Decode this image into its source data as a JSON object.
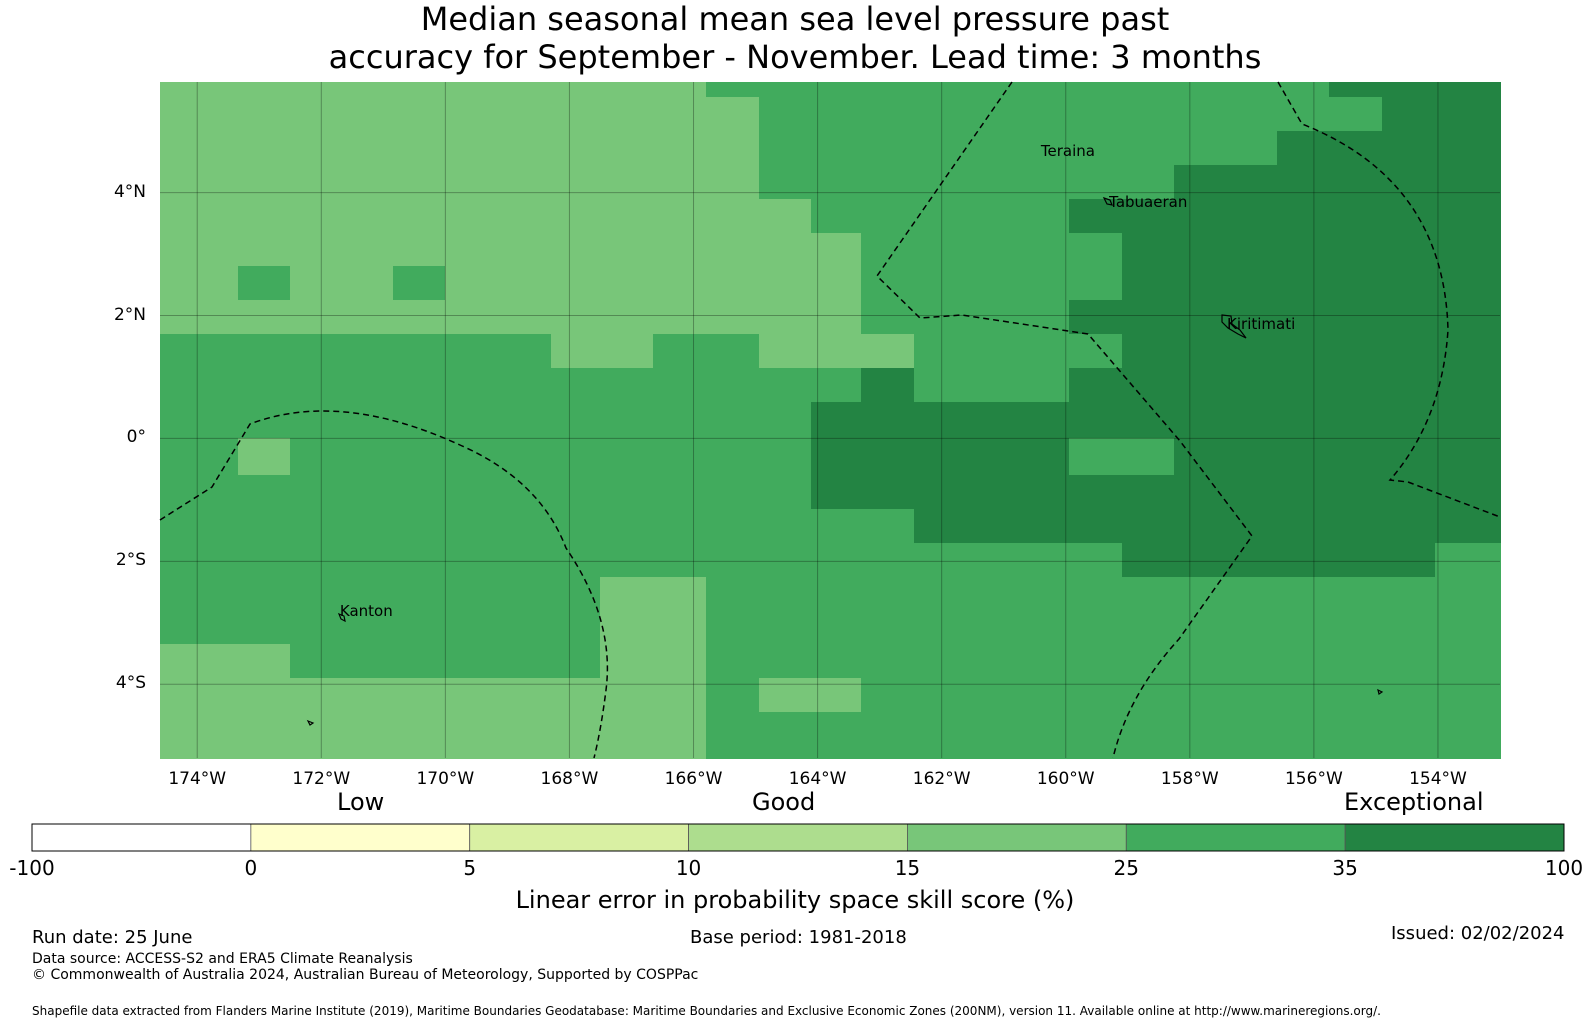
{
  "title_line1": "Median seasonal mean sea level pressure past",
  "title_line2": "accuracy for September - November. Lead time: 3 months",
  "map": {
    "lon_range": [
      -174.6,
      -153.0
    ],
    "lat_range": [
      -5.2,
      5.8
    ],
    "lon_ticks": [
      "174°W",
      "172°W",
      "170°W",
      "168°W",
      "166°W",
      "164°W",
      "162°W",
      "160°W",
      "158°W",
      "156°W",
      "154°W"
    ],
    "lat_ticks": [
      "4°N",
      "2°N",
      "0°",
      "2°S",
      "4°S"
    ],
    "places": [
      {
        "name": "Teraina",
        "lon": -160.4,
        "lat": 4.68
      },
      {
        "name": "Tabuaeran",
        "lon": -159.3,
        "lat": 3.85
      },
      {
        "name": "Kiritimati",
        "lon": -157.4,
        "lat": 1.87
      },
      {
        "name": "Kanton",
        "lon": -171.7,
        "lat": -2.81
      }
    ],
    "skill_grid": {
      "lon_edges": [
        -174.6,
        -173.35,
        -172.5,
        -171.7,
        -170.85,
        -170.0,
        -169.15,
        -168.3,
        -167.5,
        -166.65,
        -165.8,
        -164.95,
        -164.1,
        -163.3,
        -162.45,
        -161.6,
        -160.8,
        -159.95,
        -159.1,
        -158.25,
        -157.4,
        -156.6,
        -155.75,
        -154.9,
        -154.05,
        -153.0
      ],
      "lat_edges": [
        5.8,
        5.55,
        5.0,
        4.45,
        3.9,
        3.35,
        2.8,
        2.25,
        1.7,
        1.15,
        0.6,
        0.0,
        -0.6,
        -1.15,
        -1.7,
        -2.25,
        -2.8,
        -3.35,
        -3.9,
        -4.45,
        -5.2
      ],
      "rows": [
        "1111111111222222222222333",
        "1111111111122222222222233",
        "1111111111122222222223333",
        "1111111111122222222333333",
        "1111111111112222233333333",
        "1111111111111222223333333",
        "1211211111111222223333333",
        "1111111111111222233333333",
        "2222222112211122223333333",
        "2222222222222322233333333",
        "2222222222223333333333333",
        "2122222222223333322333333",
        "2222222222223333333333333",
        "2222222222222233333333333",
        "2222222222222222223333332",
        "2222222211222222222222222",
        "2222222211222222222222222",
        "1122222211222222222222222",
        "1111111111211222222222222",
        "1111111111222222222222222"
      ]
    }
  },
  "colorbar": {
    "level_labels": [
      "Low",
      "Good",
      "Exceptional"
    ],
    "tick_labels": [
      "-100",
      "0",
      "5",
      "10",
      "15",
      "25",
      "35",
      "100"
    ],
    "colors": [
      "#ffffff",
      "#ffffcc",
      "#d9f0a3",
      "#addd8e",
      "#78c679",
      "#41ab5d",
      "#238443"
    ],
    "title": "Linear error in probability space skill score (%)"
  },
  "footer": {
    "run_date": "Run date: 25 June",
    "base_period": "Base period: 1981-2018",
    "issued": "Issued: 02/02/2024",
    "data_source": "Data source: ACCESS-S2 and ERA5 Climate Reanalysis",
    "copyright": "© Commonwealth of Australia 2024, Australian Bureau of Meteorology, Supported by COSPPac",
    "shapefile": "Shapefile data extracted from Flanders Marine Institute (2019), Maritime Boundaries Geodatabase: Maritime Boundaries and Exclusive Economic Zones (200NM), version 11. Available online at http://www.marineregions.org/."
  }
}
